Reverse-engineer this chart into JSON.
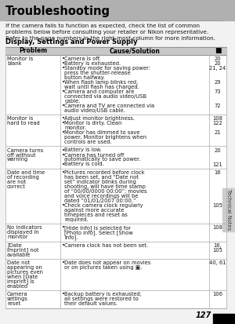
{
  "title": "Troubleshooting",
  "intro_lines": [
    "If the camera fails to function as expected, check the list of common",
    "problems below before consulting your retailer or Nikon representative.",
    "Refer to the page numbers in the right-most column for more information."
  ],
  "section_title": "Display, Settings and Power Supply",
  "page_number": "127",
  "side_label": "Technical Notes",
  "col_headers": [
    "Problem",
    "Cause/Solution",
    "■"
  ],
  "header_gray": "#c8c8c8",
  "title_gray": "#b0b0b0",
  "bg_color": "#f2f2f2",
  "white": "#ffffff",
  "rows": [
    {
      "problem": "Monitor is blank",
      "causes": [
        {
          "text": "Camera is off.",
          "page": "20"
        },
        {
          "text": "Battery is exhausted.",
          "page": "20"
        },
        {
          "text": "Standby mode for saving power: press the shutter-release button halfway.",
          "page": "21, 24"
        },
        {
          "text": "When flash lamp blinks red, wait until flash has charged.",
          "page": "29"
        },
        {
          "text": "Camera and computer are connected via audio video/USB cable.",
          "page": "73"
        },
        {
          "text": "Camera and TV are connected via audio video/USB cable.",
          "page": "72"
        }
      ]
    },
    {
      "problem": "Monitor is hard to read",
      "causes": [
        {
          "text": "Adjust monitor brightness.",
          "page": "108"
        },
        {
          "text": "Monitor is dirty. Clean monitor.",
          "page": "122"
        },
        {
          "text": "Monitor has dimmed to save power. Monitor brightens when controls are used.",
          "page": "21"
        }
      ]
    },
    {
      "problem": "Camera turns off without warning",
      "causes": [
        {
          "text": "Battery is low.",
          "page": "20"
        },
        {
          "text": "Camera has turned off automatically to save power.",
          "page": ""
        },
        {
          "text": "Battery is cold.",
          "page": "121"
        }
      ]
    },
    {
      "problem": "Date and time of recording are not correct",
      "causes": [
        {
          "text": "Pictures recorded before clock has been set, and “Date not set” indicator blinks during shooting, will have time stamp of “00/00/0000 00:00”; movies and voice recordings will be dated “01/01/2007 00:00.”",
          "page": "16"
        },
        {
          "text": "Check camera clock regularly against more accurate timepieces and reset as required.",
          "page": "105"
        }
      ]
    },
    {
      "problem": "No indicators displayed in monitor",
      "causes": [
        {
          "text": "[Hide info] is selected for [Photo info]. Select [Show info].",
          "page": "108"
        }
      ]
    },
    {
      "problem": "[Date imprint] not available",
      "causes": [
        {
          "text": "Camera clock has not been set.",
          "page": "16,\n105"
        }
      ]
    },
    {
      "problem": "Date not appearing on pictures even when [Date imprint] is enabled",
      "causes": [
        {
          "text": "Date does not appear on movies or on pictures taken using ▣.",
          "page": "40, 61"
        }
      ]
    },
    {
      "problem": "Camera settings reset",
      "causes": [
        {
          "text": "Backup battery is exhausted; all settings were restored to their default values.",
          "page": "106"
        }
      ]
    }
  ]
}
